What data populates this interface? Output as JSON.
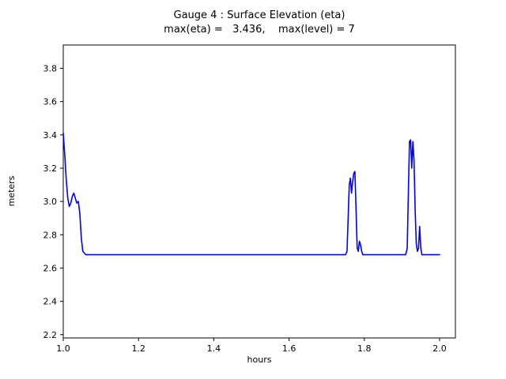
{
  "chart_data": {
    "type": "line",
    "title": "Gauge 4 : Surface Elevation (eta)",
    "subtitle": "max(eta) =   3.436,    max(level) = 7",
    "xlabel": "hours",
    "ylabel": "meters",
    "xlim": [
      1.0,
      2.042
    ],
    "ylim": [
      2.18,
      3.94
    ],
    "xticks": [
      1.0,
      1.2,
      1.4,
      1.6,
      1.8,
      2.0
    ],
    "xtick_labels": [
      "1.0",
      "1.2",
      "1.4",
      "1.6",
      "1.8",
      "2.0"
    ],
    "yticks": [
      2.2,
      2.4,
      2.6,
      2.8,
      3.0,
      3.2,
      3.4,
      3.6,
      3.8
    ],
    "ytick_labels": [
      "2.2",
      "2.4",
      "2.6",
      "2.8",
      "3.0",
      "3.2",
      "3.4",
      "3.6",
      "3.8"
    ],
    "grid": false,
    "legend": "none",
    "line_color": "#0000ff",
    "axis_color": "#000000",
    "series_name": "eta",
    "max_eta": 3.436,
    "max_level": 7,
    "x": [
      1.0,
      1.004,
      1.008,
      1.012,
      1.016,
      1.02,
      1.024,
      1.028,
      1.032,
      1.036,
      1.04,
      1.044,
      1.048,
      1.052,
      1.06,
      1.1,
      1.3,
      1.5,
      1.7,
      1.75,
      1.754,
      1.757,
      1.76,
      1.763,
      1.766,
      1.769,
      1.772,
      1.775,
      1.778,
      1.781,
      1.784,
      1.787,
      1.79,
      1.793,
      1.796,
      1.8,
      1.85,
      1.9,
      1.91,
      1.914,
      1.917,
      1.92,
      1.923,
      1.926,
      1.929,
      1.932,
      1.935,
      1.938,
      1.941,
      1.944,
      1.947,
      1.95,
      1.953,
      1.956,
      1.96,
      1.97,
      1.98,
      1.99,
      2.0
    ],
    "y": [
      3.41,
      3.28,
      3.13,
      3.02,
      2.97,
      2.99,
      3.03,
      3.05,
      3.02,
      2.99,
      3.0,
      2.93,
      2.78,
      2.7,
      2.68,
      2.68,
      2.68,
      2.68,
      2.68,
      2.68,
      2.7,
      2.9,
      3.1,
      3.14,
      3.05,
      3.12,
      3.17,
      3.18,
      2.95,
      2.72,
      2.7,
      2.76,
      2.74,
      2.7,
      2.68,
      2.68,
      2.68,
      2.68,
      2.68,
      2.72,
      3.05,
      3.36,
      3.37,
      3.2,
      3.36,
      3.25,
      2.95,
      2.75,
      2.7,
      2.72,
      2.85,
      2.72,
      2.68,
      2.68,
      2.68,
      2.68,
      2.68,
      2.68,
      2.68
    ]
  }
}
